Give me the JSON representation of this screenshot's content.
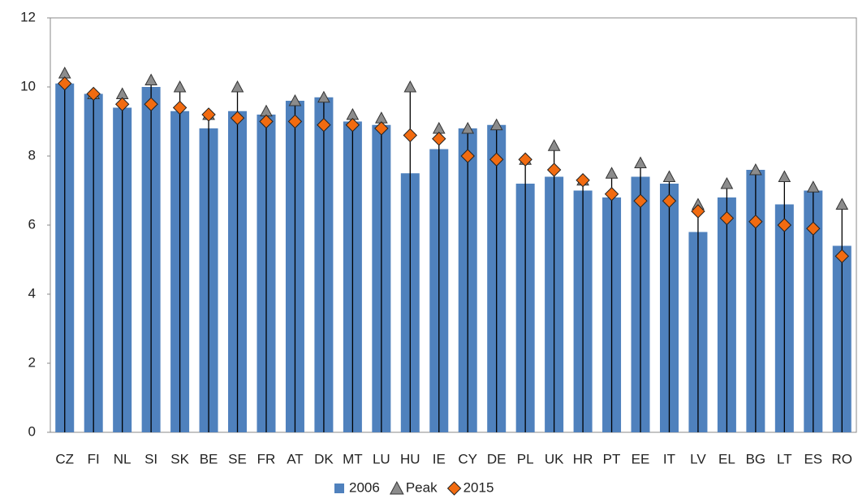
{
  "chart_data": {
    "type": "bar",
    "categories": [
      "CZ",
      "FI",
      "NL",
      "SI",
      "SK",
      "BE",
      "SE",
      "FR",
      "AT",
      "DK",
      "MT",
      "LU",
      "HU",
      "IE",
      "CY",
      "DE",
      "PL",
      "UK",
      "HR",
      "PT",
      "EE",
      "IT",
      "LV",
      "EL",
      "BG",
      "LT",
      "ES",
      "RO"
    ],
    "series": [
      {
        "name": "2006",
        "color": "#4f81bd",
        "marker": "bar",
        "values": [
          10.1,
          9.8,
          9.4,
          10.0,
          9.3,
          8.8,
          9.3,
          9.2,
          9.6,
          9.7,
          9.0,
          8.9,
          7.5,
          8.2,
          8.8,
          8.9,
          7.2,
          7.4,
          7.0,
          6.8,
          7.4,
          7.2,
          5.8,
          6.8,
          7.6,
          6.6,
          7.0,
          5.4
        ]
      },
      {
        "name": "Peak",
        "color": "#8c8c8c",
        "marker": "triangle",
        "values": [
          10.4,
          9.8,
          9.8,
          10.2,
          10.0,
          9.2,
          10.0,
          9.3,
          9.6,
          9.7,
          9.2,
          9.1,
          10.0,
          8.8,
          8.8,
          8.9,
          7.9,
          8.3,
          7.3,
          7.5,
          7.8,
          7.4,
          6.6,
          7.2,
          7.6,
          7.4,
          7.1,
          6.6
        ]
      },
      {
        "name": "2015",
        "color": "#f26b10",
        "marker": "diamond",
        "values": [
          10.1,
          9.8,
          9.5,
          9.5,
          9.4,
          9.2,
          9.1,
          9.0,
          9.0,
          8.9,
          8.9,
          8.8,
          8.6,
          8.5,
          8.0,
          7.9,
          7.9,
          7.6,
          7.3,
          6.9,
          6.7,
          6.7,
          6.4,
          6.2,
          6.1,
          6.0,
          5.9,
          5.1
        ]
      }
    ],
    "ylim": [
      0,
      12
    ],
    "yticks": [
      0,
      2,
      4,
      6,
      8,
      10,
      12
    ],
    "grid": false,
    "legend": "bottom"
  }
}
